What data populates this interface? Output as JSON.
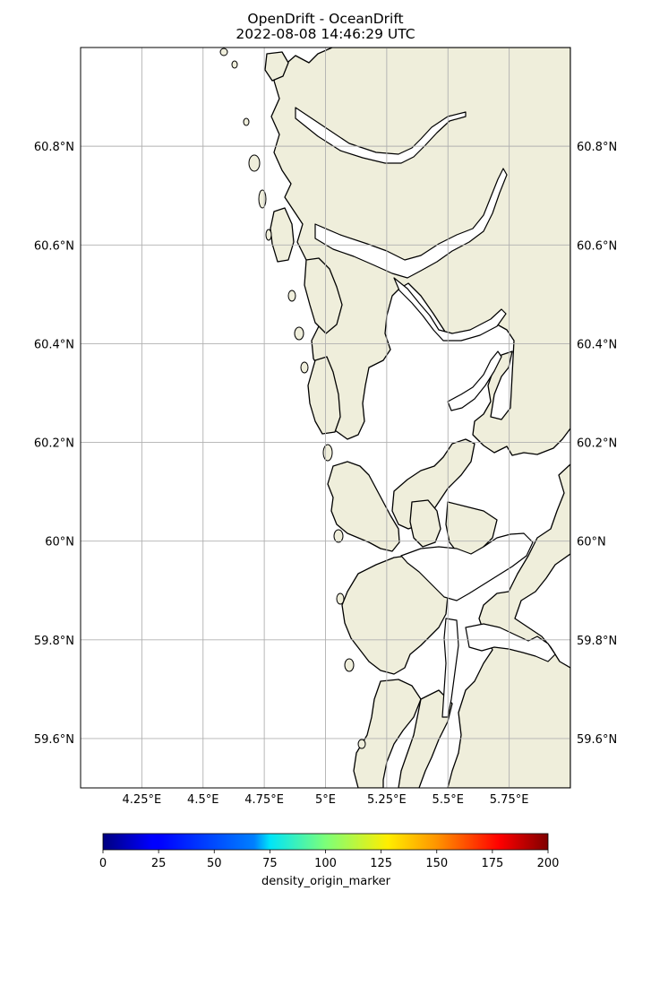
{
  "title": "OpenDrift - OceanDrift",
  "subtitle": "2022-08-08 14:46:29 UTC",
  "map": {
    "lon_range": [
      4.0,
      6.0
    ],
    "lat_range": [
      59.5,
      61.0
    ],
    "gridlines": true,
    "land_color": "#efeedb",
    "ocean_color": "#ffffff",
    "grid_color": "#b0b0b0",
    "x_ticks": [
      {
        "value": 4.25,
        "label": "4.25°E"
      },
      {
        "value": 4.5,
        "label": "4.5°E"
      },
      {
        "value": 4.75,
        "label": "4.75°E"
      },
      {
        "value": 5.0,
        "label": "5°E"
      },
      {
        "value": 5.25,
        "label": "5.25°E"
      },
      {
        "value": 5.5,
        "label": "5.5°E"
      },
      {
        "value": 5.75,
        "label": "5.75°E"
      }
    ],
    "y_ticks": [
      {
        "value": 59.6,
        "label": "59.6°N"
      },
      {
        "value": 59.8,
        "label": "59.8°N"
      },
      {
        "value": 60.0,
        "label": "60°N"
      },
      {
        "value": 60.2,
        "label": "60.2°N"
      },
      {
        "value": 60.4,
        "label": "60.4°N"
      },
      {
        "value": 60.6,
        "label": "60.6°N"
      },
      {
        "value": 60.8,
        "label": "60.8°N"
      }
    ]
  },
  "colorbar": {
    "label": "density_origin_marker",
    "colormap": "jet",
    "range": [
      0,
      200
    ],
    "ticks": [
      "0",
      "25",
      "50",
      "75",
      "100",
      "125",
      "150",
      "175",
      "200"
    ]
  }
}
